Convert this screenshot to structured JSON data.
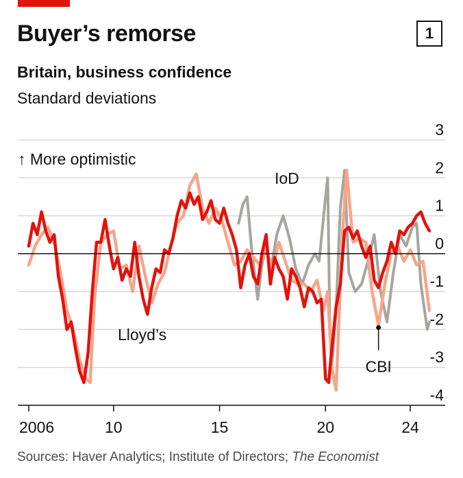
{
  "header": {
    "title": "Buyer’s remorse",
    "chart_number": "1",
    "subtitle": "Britain, business confidence",
    "unit": "Standard deviations"
  },
  "footer": {
    "source_prefix": "Sources: Haver Analytics; Institute of Directors; ",
    "source_italic": "The Economist"
  },
  "colors": {
    "accent": "#e3120b",
    "lloyds": "#e3120b",
    "cbi": "#f6a58c",
    "iod": "#a8a49e",
    "grid": "#d7d7d7",
    "axis": "#121212"
  },
  "chart_data": {
    "type": "line",
    "title": "Britain, business confidence",
    "ylabel": "Standard deviations",
    "ylim": [
      -4,
      3
    ],
    "xlim": [
      2006,
      2025
    ],
    "yticks": [
      3,
      2,
      1,
      0,
      -1,
      -2,
      -3,
      -4
    ],
    "xticks": [
      {
        "value": 2006,
        "label": "2006"
      },
      {
        "value": 2010,
        "label": "10"
      },
      {
        "value": 2015,
        "label": "15"
      },
      {
        "value": 2020,
        "label": "20"
      },
      {
        "value": 2024,
        "label": "24"
      }
    ],
    "grid": true,
    "annotations": {
      "up_label": "↑ More optimistic",
      "iod_label": "IoD",
      "lloyds_label": "Lloyd’s",
      "cbi_label": "CBI",
      "cbi_point": {
        "x": 2022.5,
        "y": -1.95
      }
    },
    "series": [
      {
        "name": "IoD",
        "x": [
          2015.9,
          2016.1,
          2016.3,
          2016.5,
          2016.8,
          2017.0,
          2017.2,
          2017.4,
          2017.7,
          2018.0,
          2018.3,
          2018.6,
          2018.9,
          2019.2,
          2019.5,
          2019.7,
          2020.0,
          2020.1,
          2020.2,
          2020.3,
          2020.5,
          2020.7,
          2020.9,
          2021.1,
          2021.4,
          2021.7,
          2022.0,
          2022.3,
          2022.6,
          2022.9,
          2023.2,
          2023.5,
          2023.8,
          2024.1,
          2024.3,
          2024.5,
          2024.8,
          2024.9
        ],
        "y": [
          0.8,
          1.3,
          1.5,
          0.2,
          -1.2,
          -0.3,
          0.2,
          -0.5,
          0.5,
          1.0,
          0.4,
          -0.4,
          -0.8,
          -0.3,
          0.0,
          -0.2,
          1.5,
          2.0,
          -1.8,
          -3.0,
          -1.5,
          1.2,
          2.2,
          -0.5,
          -1.0,
          -0.8,
          -0.2,
          0.5,
          -1.0,
          -1.8,
          -0.5,
          0.5,
          0.2,
          0.7,
          0.8,
          -0.8,
          -2.0,
          -1.8
        ]
      },
      {
        "name": "CBI",
        "x": [
          2006.0,
          2006.3,
          2006.6,
          2006.9,
          2007.2,
          2007.5,
          2007.8,
          2008.1,
          2008.4,
          2008.7,
          2008.9,
          2009.1,
          2009.4,
          2009.7,
          2010.0,
          2010.3,
          2010.6,
          2010.9,
          2011.2,
          2011.5,
          2011.8,
          2012.1,
          2012.4,
          2012.7,
          2013.0,
          2013.3,
          2013.6,
          2013.9,
          2014.2,
          2014.5,
          2014.8,
          2015.1,
          2015.4,
          2015.7,
          2016.0,
          2016.3,
          2016.6,
          2016.9,
          2017.2,
          2017.5,
          2017.8,
          2018.1,
          2018.4,
          2018.7,
          2019.0,
          2019.3,
          2019.6,
          2019.9,
          2020.1,
          2020.3,
          2020.5,
          2020.8,
          2021.0,
          2021.3,
          2021.6,
          2021.9,
          2022.2,
          2022.5,
          2022.8,
          2023.1,
          2023.4,
          2023.7,
          2024.0,
          2024.3,
          2024.6,
          2024.9
        ],
        "y": [
          -0.3,
          0.2,
          0.5,
          0.7,
          0.3,
          -0.5,
          -1.5,
          -2.0,
          -2.8,
          -3.3,
          -3.4,
          -1.2,
          0.3,
          0.5,
          0.6,
          -0.4,
          -0.3,
          -1.0,
          0.2,
          -0.6,
          -1.3,
          -0.8,
          -0.5,
          0.2,
          0.8,
          1.0,
          1.8,
          2.1,
          1.2,
          0.8,
          1.2,
          0.9,
          0.3,
          -0.3,
          -0.2,
          0.1,
          -0.1,
          -0.3,
          0.1,
          -0.4,
          0.3,
          -0.2,
          -0.7,
          -0.8,
          -0.8,
          -1.0,
          -0.7,
          -1.5,
          -1.0,
          -3.0,
          -3.6,
          0.5,
          2.2,
          0.3,
          0.4,
          0.3,
          -1.0,
          -1.9,
          -0.8,
          0.0,
          0.2,
          -0.2,
          0.1,
          -0.3,
          -0.2,
          -1.5
        ]
      },
      {
        "name": "Lloyd’s",
        "x": [
          2006.0,
          2006.2,
          2006.4,
          2006.6,
          2006.8,
          2007.0,
          2007.2,
          2007.4,
          2007.6,
          2007.8,
          2008.0,
          2008.2,
          2008.4,
          2008.6,
          2008.8,
          2009.0,
          2009.2,
          2009.4,
          2009.6,
          2009.8,
          2010.0,
          2010.2,
          2010.4,
          2010.6,
          2010.8,
          2011.0,
          2011.2,
          2011.4,
          2011.6,
          2011.8,
          2012.0,
          2012.2,
          2012.4,
          2012.6,
          2012.8,
          2013.0,
          2013.2,
          2013.4,
          2013.6,
          2013.8,
          2014.0,
          2014.2,
          2014.4,
          2014.6,
          2014.8,
          2015.0,
          2015.2,
          2015.4,
          2015.6,
          2015.8,
          2016.0,
          2016.2,
          2016.4,
          2016.6,
          2016.8,
          2017.0,
          2017.2,
          2017.4,
          2017.6,
          2017.8,
          2018.0,
          2018.2,
          2018.4,
          2018.6,
          2018.8,
          2019.0,
          2019.2,
          2019.4,
          2019.6,
          2019.8,
          2020.0,
          2020.15,
          2020.3,
          2020.5,
          2020.7,
          2020.9,
          2021.1,
          2021.3,
          2021.5,
          2021.7,
          2021.9,
          2022.1,
          2022.3,
          2022.5,
          2022.7,
          2022.9,
          2023.1,
          2023.3,
          2023.5,
          2023.7,
          2023.9,
          2024.1,
          2024.3,
          2024.5,
          2024.7,
          2024.9
        ],
        "y": [
          0.2,
          0.8,
          0.5,
          1.1,
          0.6,
          0.3,
          0.5,
          -0.6,
          -1.2,
          -2.0,
          -1.8,
          -2.5,
          -3.1,
          -3.4,
          -2.6,
          -1.0,
          0.3,
          0.3,
          0.9,
          0.2,
          -0.4,
          -0.1,
          -0.7,
          -0.4,
          -0.6,
          0.3,
          -0.6,
          -1.2,
          -1.6,
          -0.9,
          -0.4,
          -0.5,
          0.1,
          0.0,
          0.4,
          1.0,
          1.4,
          1.2,
          1.6,
          1.3,
          1.5,
          0.9,
          1.1,
          1.4,
          0.9,
          0.8,
          1.2,
          0.8,
          0.5,
          0.1,
          -0.9,
          -0.3,
          0.0,
          -0.6,
          -0.8,
          0.0,
          0.5,
          -0.8,
          -0.1,
          -0.4,
          -0.6,
          -1.2,
          -0.4,
          -0.6,
          -0.9,
          -1.4,
          -0.9,
          -1.0,
          -1.3,
          -1.2,
          -3.3,
          -3.4,
          -2.5,
          -1.4,
          -0.8,
          0.6,
          0.7,
          0.4,
          0.6,
          0.2,
          -0.1,
          0.2,
          -0.7,
          -0.9,
          -0.5,
          -0.2,
          0.3,
          0.0,
          0.6,
          0.5,
          0.7,
          0.8,
          1.0,
          1.1,
          0.8,
          0.6
        ]
      }
    ]
  }
}
